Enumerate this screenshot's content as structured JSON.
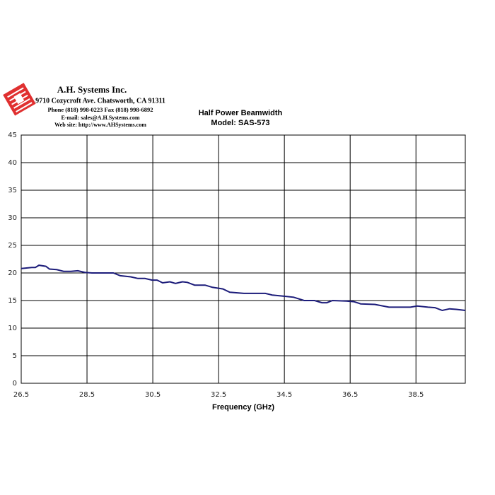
{
  "header": {
    "company": "A.H. Systems Inc.",
    "address": "9710 Cozycroft Ave. Chatsworth, CA 91311",
    "phone": "Phone (818) 998-0223 Fax (818) 998-6892",
    "email": "E-mail:  sales@A.H.Systems.com",
    "website": "Web site:  http://www.AHSystems.com"
  },
  "chart_data": {
    "type": "line",
    "title": "Half Power Beamwidth",
    "subtitle": "Model: SAS-573",
    "x_label": "Frequency (GHz)",
    "x": [
      26.5,
      26.82,
      26.93,
      27.04,
      27.25,
      27.36,
      27.58,
      27.79,
      28.01,
      28.22,
      28.44,
      28.65,
      29.3,
      29.51,
      29.83,
      30.05,
      30.26,
      30.48,
      30.63,
      30.8,
      31.02,
      31.19,
      31.4,
      31.55,
      31.77,
      32.09,
      32.31,
      32.63,
      32.84,
      33.27,
      33.6,
      33.92,
      34.13,
      34.46,
      34.78,
      35.1,
      35.42,
      35.64,
      35.79,
      35.96,
      36.39,
      36.61,
      36.82,
      37.25,
      37.68,
      38.33,
      38.54,
      38.87,
      39.08,
      39.3,
      39.52,
      39.73,
      40.0
    ],
    "series": [
      {
        "color": "#1c1c7a",
        "values": [
          20.8,
          21.0,
          21.0,
          21.4,
          21.2,
          20.7,
          20.6,
          20.3,
          20.3,
          20.4,
          20.1,
          20.0,
          20.0,
          19.5,
          19.3,
          19.0,
          19.0,
          18.7,
          18.7,
          18.2,
          18.4,
          18.1,
          18.4,
          18.3,
          17.8,
          17.8,
          17.4,
          17.1,
          16.5,
          16.3,
          16.3,
          16.3,
          16.0,
          15.8,
          15.6,
          15.0,
          15.0,
          14.6,
          14.6,
          15.0,
          14.9,
          14.8,
          14.4,
          14.3,
          13.8,
          13.8,
          14.0,
          13.8,
          13.7,
          13.2,
          13.5,
          13.4,
          13.2
        ]
      }
    ],
    "xlim": [
      26.5,
      40
    ],
    "xticks": [
      26.5,
      28.5,
      30.5,
      32.5,
      34.5,
      36.5,
      38.5
    ],
    "ylim": [
      0,
      45
    ],
    "yticks": [
      0,
      5,
      10,
      15,
      20,
      25,
      30,
      35,
      40,
      45
    ],
    "grid": true
  }
}
